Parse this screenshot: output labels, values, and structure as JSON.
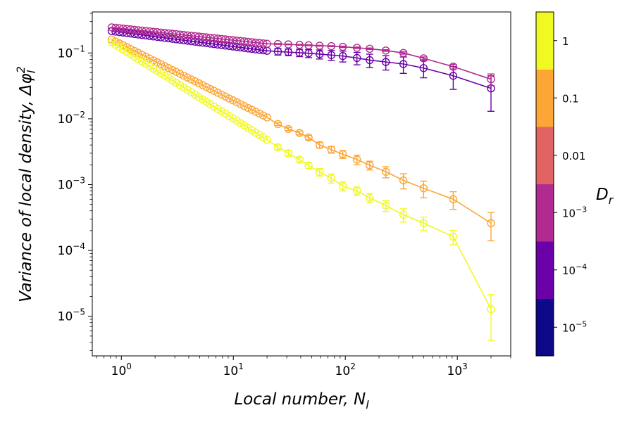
{
  "chart_data": {
    "type": "scatter",
    "xscale": "log",
    "yscale": "log",
    "xlim": [
      0.55,
      3000
    ],
    "ylim": [
      2.5e-06,
      0.42
    ],
    "xlabel": {
      "main": "Local number,",
      "symbol": "N",
      "sub": "l"
    },
    "ylabel": {
      "main": "Variance of local density,",
      "symbol": "Δφ",
      "sub": "l",
      "sup": "2"
    },
    "x_ticks": [
      {
        "value": 1,
        "base": "10",
        "exp": "0"
      },
      {
        "value": 10,
        "base": "10",
        "exp": "1"
      },
      {
        "value": 100,
        "base": "10",
        "exp": "2"
      },
      {
        "value": 1000,
        "base": "10",
        "exp": "3"
      }
    ],
    "y_ticks": [
      {
        "value": 0.1,
        "base": "10",
        "exp": "−1"
      },
      {
        "value": 0.01,
        "base": "10",
        "exp": "−2"
      },
      {
        "value": 0.001,
        "base": "10",
        "exp": "−3"
      },
      {
        "value": 0.0001,
        "base": "10",
        "exp": "−4"
      },
      {
        "value": 1e-05,
        "base": "10",
        "exp": "−5"
      }
    ],
    "colorbar": {
      "title": "D",
      "title_sub": "r",
      "levels": [
        {
          "color": "#0d0887",
          "label": "10",
          "exp": "−5"
        },
        {
          "color": "#6a00a8",
          "label": "10",
          "exp": "−4"
        },
        {
          "color": "#b12a90",
          "label": "10",
          "exp": "−3"
        },
        {
          "color": "#e16462",
          "label": "0.01",
          "exp": ""
        },
        {
          "color": "#fca636",
          "label": "0.1",
          "exp": ""
        },
        {
          "color": "#f0f921",
          "label": "1",
          "exp": ""
        }
      ]
    },
    "series": [
      {
        "color": "#6a00a8",
        "dense": {
          "x_start": 0.82,
          "x_end": 20,
          "count": 42,
          "y_start": 0.215,
          "y_end": 0.108
        },
        "points": [
          {
            "x": 25,
            "y": 0.105,
            "err": 0.012
          },
          {
            "x": 31,
            "y": 0.103,
            "err": 0.012
          },
          {
            "x": 39,
            "y": 0.101,
            "err": 0.013
          },
          {
            "x": 47,
            "y": 0.099,
            "err": 0.014
          },
          {
            "x": 59,
            "y": 0.096,
            "err": 0.015
          },
          {
            "x": 75,
            "y": 0.093,
            "err": 0.016
          },
          {
            "x": 95,
            "y": 0.09,
            "err": 0.017
          },
          {
            "x": 127,
            "y": 0.084,
            "err": 0.018
          },
          {
            "x": 165,
            "y": 0.078,
            "err": 0.018
          },
          {
            "x": 230,
            "y": 0.073,
            "err": 0.018
          },
          {
            "x": 330,
            "y": 0.068,
            "err": 0.019
          },
          {
            "x": 500,
            "y": 0.059,
            "err": 0.017
          },
          {
            "x": 920,
            "y": 0.045,
            "err": 0.017
          },
          {
            "x": 2000,
            "y": 0.029,
            "err": 0.016
          }
        ]
      },
      {
        "color": "#b12a90",
        "dense": {
          "x_start": 0.82,
          "x_end": 20,
          "count": 42,
          "y_start": 0.245,
          "y_end": 0.138
        },
        "points": [
          {
            "x": 25,
            "y": 0.137,
            "err": 0.002
          },
          {
            "x": 31,
            "y": 0.135,
            "err": 0.002
          },
          {
            "x": 39,
            "y": 0.133,
            "err": 0.002
          },
          {
            "x": 47,
            "y": 0.131,
            "err": 0.002
          },
          {
            "x": 59,
            "y": 0.129,
            "err": 0.002
          },
          {
            "x": 75,
            "y": 0.127,
            "err": 0.002
          },
          {
            "x": 95,
            "y": 0.124,
            "err": 0.003
          },
          {
            "x": 127,
            "y": 0.12,
            "err": 0.003
          },
          {
            "x": 165,
            "y": 0.116,
            "err": 0.003
          },
          {
            "x": 230,
            "y": 0.109,
            "err": 0.003
          },
          {
            "x": 330,
            "y": 0.1,
            "err": 0.004
          },
          {
            "x": 500,
            "y": 0.083,
            "err": 0.004
          },
          {
            "x": 920,
            "y": 0.062,
            "err": 0.005
          },
          {
            "x": 2000,
            "y": 0.04,
            "err": 0.008
          }
        ]
      },
      {
        "color": "#fca636",
        "dense": {
          "x_start": 0.82,
          "x_end": 20,
          "count": 42,
          "y_start": 0.16,
          "y_end": 0.0105
        },
        "points": [
          {
            "x": 25,
            "y": 0.0083,
            "err": 0.0004
          },
          {
            "x": 31,
            "y": 0.007,
            "err": 0.0004
          },
          {
            "x": 39,
            "y": 0.0061,
            "err": 0.0004
          },
          {
            "x": 47,
            "y": 0.0052,
            "err": 0.0004
          },
          {
            "x": 59,
            "y": 0.004,
            "err": 0.0004
          },
          {
            "x": 75,
            "y": 0.0034,
            "err": 0.0004
          },
          {
            "x": 95,
            "y": 0.0029,
            "err": 0.0004
          },
          {
            "x": 127,
            "y": 0.0024,
            "err": 0.0004
          },
          {
            "x": 165,
            "y": 0.00197,
            "err": 0.0003
          },
          {
            "x": 230,
            "y": 0.00157,
            "err": 0.0003
          },
          {
            "x": 330,
            "y": 0.00116,
            "err": 0.0003
          },
          {
            "x": 500,
            "y": 0.00088,
            "err": 0.00025
          },
          {
            "x": 920,
            "y": 0.0006,
            "err": 0.00018
          },
          {
            "x": 2000,
            "y": 0.00026,
            "err": 0.00012
          }
        ]
      },
      {
        "color": "#f0f921",
        "dense": {
          "x_start": 0.82,
          "x_end": 20,
          "count": 42,
          "y_start": 0.145,
          "y_end": 0.0048
        },
        "points": [
          {
            "x": 25,
            "y": 0.0037,
            "err": 0.0003
          },
          {
            "x": 31,
            "y": 0.003,
            "err": 0.0003
          },
          {
            "x": 39,
            "y": 0.0024,
            "err": 0.0002
          },
          {
            "x": 47,
            "y": 0.00195,
            "err": 0.0002
          },
          {
            "x": 59,
            "y": 0.00155,
            "err": 0.0002
          },
          {
            "x": 75,
            "y": 0.00125,
            "err": 0.0002
          },
          {
            "x": 95,
            "y": 0.00095,
            "err": 0.00015
          },
          {
            "x": 127,
            "y": 0.0008,
            "err": 0.00012
          },
          {
            "x": 165,
            "y": 0.00063,
            "err": 0.0001
          },
          {
            "x": 230,
            "y": 0.00048,
            "err": 9e-05
          },
          {
            "x": 330,
            "y": 0.00035,
            "err": 8e-05
          },
          {
            "x": 500,
            "y": 0.00026,
            "err": 6e-05
          },
          {
            "x": 920,
            "y": 0.000162,
            "err": 4e-05
          },
          {
            "x": 2000,
            "y": 1.28e-05,
            "err": 8.5e-06
          }
        ]
      }
    ]
  }
}
